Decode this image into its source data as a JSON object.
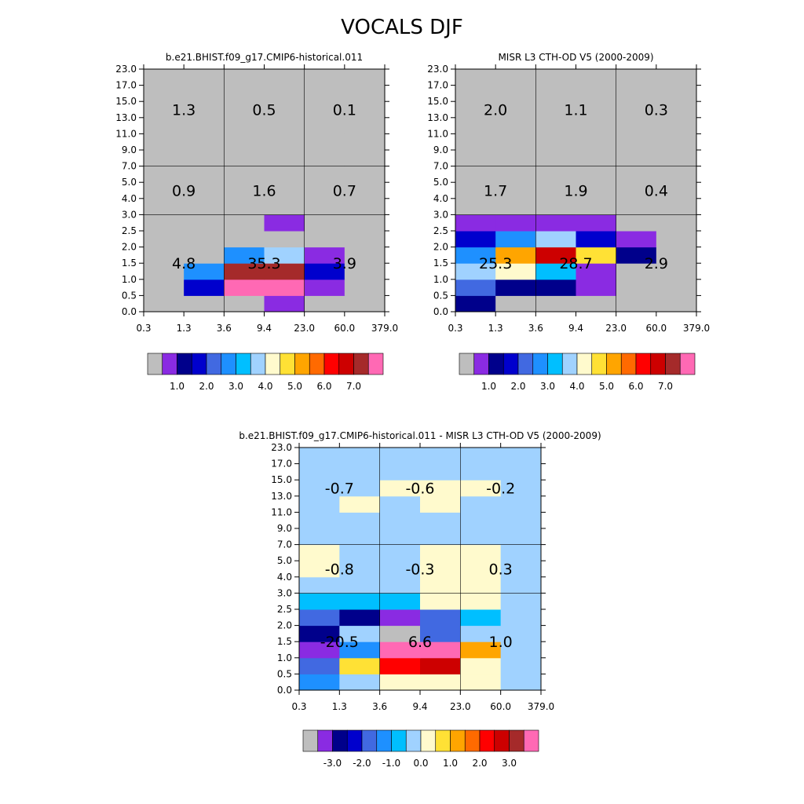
{
  "title": "VOCALS DJF",
  "chart_data": [
    {
      "type": "heatmap",
      "title": "b.e21.BHIST.f09_g17.CMIP6-historical.011",
      "xlabel": "",
      "ylabel": "",
      "x_ticks": [
        "0.3",
        "1.3",
        "3.6",
        "9.4",
        "23.0",
        "60.0",
        "379.0"
      ],
      "y_ticks": [
        "0.0",
        "0.5",
        "1.0",
        "1.5",
        "2.0",
        "2.5",
        "3.0",
        "4.0",
        "5.0",
        "7.0",
        "9.0",
        "11.0",
        "13.0",
        "15.0",
        "17.0",
        "23.0"
      ],
      "cells": [
        [
          0,
          0,
          0,
          1,
          0,
          0
        ],
        [
          0,
          3,
          15,
          15,
          1,
          0
        ],
        [
          0,
          5,
          14,
          14,
          3,
          0
        ],
        [
          0,
          0,
          5,
          7,
          1,
          0
        ],
        [
          0,
          0,
          0,
          0,
          0,
          0
        ],
        [
          0,
          0,
          0,
          1,
          0,
          0
        ],
        [
          0,
          0,
          0,
          0,
          0,
          0
        ],
        [
          0,
          0,
          0,
          0,
          0,
          0
        ],
        [
          0,
          0,
          0,
          0,
          0,
          0
        ],
        [
          0,
          0,
          0,
          0,
          0,
          0
        ],
        [
          0,
          0,
          0,
          0,
          0,
          0
        ],
        [
          0,
          0,
          0,
          0,
          0,
          0
        ],
        [
          0,
          0,
          0,
          0,
          0,
          0
        ],
        [
          0,
          0,
          0,
          0,
          0,
          0
        ],
        [
          0,
          0,
          0,
          0,
          0,
          0
        ]
      ],
      "region_values": [
        {
          "label": "1.3",
          "col": 0,
          "row": "high"
        },
        {
          "label": "0.5",
          "col": 1,
          "row": "high"
        },
        {
          "label": "0.1",
          "col": 2,
          "row": "high"
        },
        {
          "label": "0.9",
          "col": 0,
          "row": "mid"
        },
        {
          "label": "1.6",
          "col": 1,
          "row": "mid"
        },
        {
          "label": "0.7",
          "col": 2,
          "row": "mid"
        },
        {
          "label": "4.8",
          "col": 0,
          "row": "low"
        },
        {
          "label": "35.3",
          "col": 1,
          "row": "low"
        },
        {
          "label": "3.9",
          "col": 2,
          "row": "low"
        }
      ],
      "colorbar": {
        "colors": [
          "#BEBEBE",
          "#8A2BE2",
          "#00008B",
          "#0000CD",
          "#4169E1",
          "#1E90FF",
          "#00BFFF",
          "#A0D2FF",
          "#FFFACD",
          "#FFE135",
          "#FFA500",
          "#FF6A00",
          "#FF0000",
          "#CD0000",
          "#A52A2A",
          "#FF69B4"
        ],
        "labels": [
          "1.0",
          "2.0",
          "3.0",
          "4.0",
          "5.0",
          "6.0",
          "7.0"
        ],
        "label_start_index": 2
      }
    },
    {
      "type": "heatmap",
      "title": "MISR L3 CTH-OD V5 (2000-2009)",
      "xlabel": "",
      "ylabel": "",
      "x_ticks": [
        "0.3",
        "1.3",
        "3.6",
        "9.4",
        "23.0",
        "60.0",
        "379.0"
      ],
      "y_ticks": [
        "0.0",
        "0.5",
        "1.0",
        "1.5",
        "2.0",
        "2.5",
        "3.0",
        "4.0",
        "5.0",
        "7.0",
        "9.0",
        "11.0",
        "13.0",
        "15.0",
        "17.0",
        "23.0"
      ],
      "cells": [
        [
          2,
          0,
          0,
          0,
          0,
          0
        ],
        [
          4,
          2,
          2,
          1,
          0,
          0
        ],
        [
          7,
          8,
          6,
          1,
          0,
          0
        ],
        [
          5,
          10,
          13,
          9,
          2,
          0
        ],
        [
          3,
          5,
          7,
          3,
          1,
          0
        ],
        [
          1,
          1,
          1,
          1,
          0,
          0
        ],
        [
          0,
          0,
          0,
          0,
          0,
          0
        ],
        [
          0,
          0,
          0,
          0,
          0,
          0
        ],
        [
          0,
          0,
          0,
          0,
          0,
          0
        ],
        [
          0,
          0,
          0,
          0,
          0,
          0
        ],
        [
          0,
          0,
          0,
          0,
          0,
          0
        ],
        [
          0,
          0,
          0,
          0,
          0,
          0
        ],
        [
          0,
          0,
          0,
          0,
          0,
          0
        ],
        [
          0,
          0,
          0,
          0,
          0,
          0
        ],
        [
          0,
          0,
          0,
          0,
          0,
          0
        ]
      ],
      "region_values": [
        {
          "label": "2.0",
          "col": 0,
          "row": "high"
        },
        {
          "label": "1.1",
          "col": 1,
          "row": "high"
        },
        {
          "label": "0.3",
          "col": 2,
          "row": "high"
        },
        {
          "label": "1.7",
          "col": 0,
          "row": "mid"
        },
        {
          "label": "1.9",
          "col": 1,
          "row": "mid"
        },
        {
          "label": "0.4",
          "col": 2,
          "row": "mid"
        },
        {
          "label": "25.3",
          "col": 0,
          "row": "low"
        },
        {
          "label": "28.7",
          "col": 1,
          "row": "low"
        },
        {
          "label": "2.9",
          "col": 2,
          "row": "low"
        }
      ],
      "colorbar": {
        "colors": [
          "#BEBEBE",
          "#8A2BE2",
          "#00008B",
          "#0000CD",
          "#4169E1",
          "#1E90FF",
          "#00BFFF",
          "#A0D2FF",
          "#FFFACD",
          "#FFE135",
          "#FFA500",
          "#FF6A00",
          "#FF0000",
          "#CD0000",
          "#A52A2A",
          "#FF69B4"
        ],
        "labels": [
          "1.0",
          "2.0",
          "3.0",
          "4.0",
          "5.0",
          "6.0",
          "7.0"
        ],
        "label_start_index": 2
      }
    },
    {
      "type": "heatmap",
      "title": "b.e21.BHIST.f09_g17.CMIP6-historical.011 - MISR L3 CTH-OD V5 (2000-2009)",
      "xlabel": "",
      "ylabel": "",
      "x_ticks": [
        "0.3",
        "1.3",
        "3.6",
        "9.4",
        "23.0",
        "60.0",
        "379.0"
      ],
      "y_ticks": [
        "0.0",
        "0.5",
        "1.0",
        "1.5",
        "2.0",
        "2.5",
        "3.0",
        "4.0",
        "5.0",
        "7.0",
        "9.0",
        "11.0",
        "13.0",
        "15.0",
        "17.0",
        "23.0"
      ],
      "cells": [
        [
          5,
          7,
          8,
          8,
          8,
          7
        ],
        [
          4,
          9,
          12,
          13,
          8,
          7
        ],
        [
          1,
          5,
          15,
          15,
          10,
          7
        ],
        [
          2,
          7,
          0,
          4,
          7,
          7
        ],
        [
          4,
          2,
          1,
          4,
          6,
          7
        ],
        [
          6,
          6,
          6,
          8,
          8,
          7
        ],
        [
          7,
          7,
          7,
          8,
          8,
          7
        ],
        [
          8,
          7,
          7,
          8,
          8,
          7
        ],
        [
          8,
          7,
          7,
          8,
          8,
          7
        ],
        [
          7,
          7,
          7,
          7,
          7,
          7
        ],
        [
          7,
          7,
          7,
          7,
          7,
          7
        ],
        [
          7,
          8,
          7,
          8,
          7,
          7
        ],
        [
          7,
          7,
          8,
          8,
          8,
          7
        ],
        [
          7,
          7,
          7,
          7,
          7,
          7
        ],
        [
          7,
          7,
          7,
          7,
          7,
          7
        ]
      ],
      "region_values": [
        {
          "label": "-0.7",
          "col": 0,
          "row": "high"
        },
        {
          "label": "-0.6",
          "col": 1,
          "row": "high"
        },
        {
          "label": "-0.2",
          "col": 2,
          "row": "high"
        },
        {
          "label": "-0.8",
          "col": 0,
          "row": "mid"
        },
        {
          "label": "-0.3",
          "col": 1,
          "row": "mid"
        },
        {
          "label": "0.3",
          "col": 2,
          "row": "mid"
        },
        {
          "label": "-20.5",
          "col": 0,
          "row": "low"
        },
        {
          "label": "6.6",
          "col": 1,
          "row": "low"
        },
        {
          "label": "1.0",
          "col": 2,
          "row": "low"
        }
      ],
      "colorbar": {
        "colors": [
          "#BEBEBE",
          "#8A2BE2",
          "#00008B",
          "#0000CD",
          "#4169E1",
          "#1E90FF",
          "#00BFFF",
          "#A0D2FF",
          "#FFFACD",
          "#FFE135",
          "#FFA500",
          "#FF6A00",
          "#FF0000",
          "#CD0000",
          "#A52A2A",
          "#FF69B4"
        ],
        "labels": [
          "-3.0",
          "-2.0",
          "-1.0",
          "0.0",
          "1.0",
          "2.0",
          "3.0"
        ],
        "label_start_index": 2
      }
    }
  ]
}
